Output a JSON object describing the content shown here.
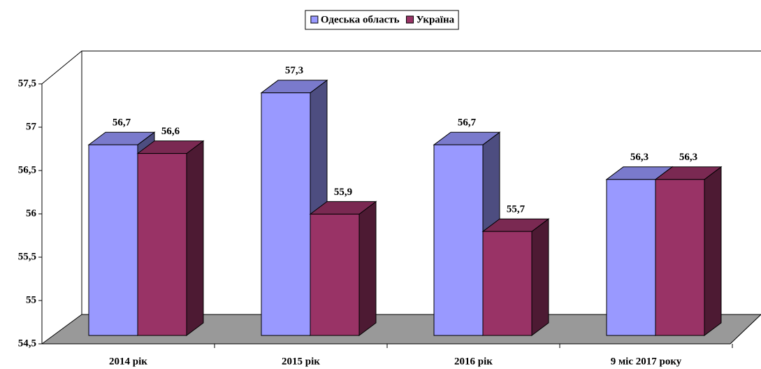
{
  "chart_data": {
    "type": "bar3d",
    "categories": [
      "2014 рік",
      "2015 рік",
      "2016 рік",
      "9 міс 2017 року"
    ],
    "series": [
      {
        "name": "Одеська область",
        "color": "#9999ff",
        "values": [
          56.7,
          57.3,
          56.7,
          56.3
        ],
        "value_labels": [
          "56,7",
          "57,3",
          "56,7",
          "56,3"
        ]
      },
      {
        "name": "Україна",
        "color": "#993366",
        "values": [
          56.6,
          55.9,
          55.7,
          56.3
        ],
        "value_labels": [
          "56,6",
          "55,9",
          "55,7",
          "56,3"
        ]
      }
    ],
    "ylim": [
      54.5,
      57.5
    ],
    "yticks": [
      {
        "value": 54.5,
        "label": "54,5"
      },
      55,
      {
        "value": 55.5,
        "label": "55,5"
      },
      56,
      {
        "value": 56.5,
        "label": "56,5"
      },
      57,
      {
        "value": 57.5,
        "label": "57,5"
      }
    ],
    "legend": "top"
  }
}
